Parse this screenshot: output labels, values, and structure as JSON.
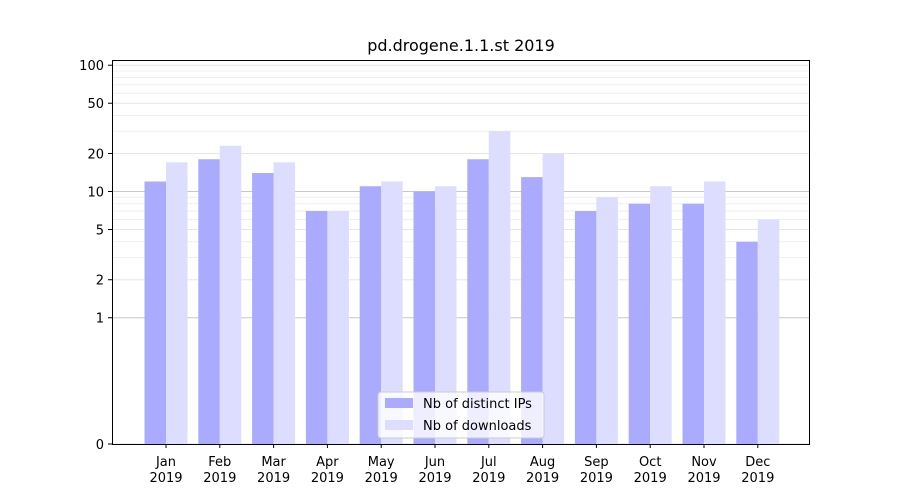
{
  "chart_data": {
    "type": "bar",
    "title": "pd.drogene.1.1.st 2019",
    "xlabel": "",
    "ylabel": "",
    "yscale": "symlog",
    "ylim": [
      0,
      110
    ],
    "yticks": [
      0,
      1,
      2,
      5,
      10,
      20,
      50,
      100
    ],
    "ytick_labels": [
      "0",
      "1",
      "2",
      "5",
      "10",
      "20",
      "50",
      "100"
    ],
    "grid": true,
    "legend": "lower-center",
    "categories": [
      {
        "month": "Jan",
        "year": "2019"
      },
      {
        "month": "Feb",
        "year": "2019"
      },
      {
        "month": "Mar",
        "year": "2019"
      },
      {
        "month": "Apr",
        "year": "2019"
      },
      {
        "month": "May",
        "year": "2019"
      },
      {
        "month": "Jun",
        "year": "2019"
      },
      {
        "month": "Jul",
        "year": "2019"
      },
      {
        "month": "Aug",
        "year": "2019"
      },
      {
        "month": "Sep",
        "year": "2019"
      },
      {
        "month": "Oct",
        "year": "2019"
      },
      {
        "month": "Nov",
        "year": "2019"
      },
      {
        "month": "Dec",
        "year": "2019"
      }
    ],
    "series": [
      {
        "name": "Nb of distinct IPs",
        "color": "#aaaaff",
        "values": [
          12,
          18,
          14,
          7,
          11,
          10,
          18,
          13,
          7,
          8,
          8,
          4
        ]
      },
      {
        "name": "Nb of downloads",
        "color": "#ddddff",
        "values": [
          17,
          23,
          17,
          7,
          12,
          11,
          30,
          20,
          9,
          11,
          12,
          6
        ]
      }
    ]
  }
}
